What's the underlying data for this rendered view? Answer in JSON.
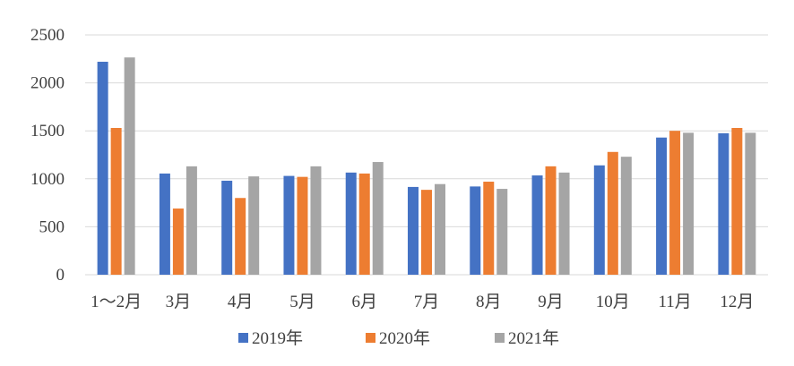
{
  "chart_data": {
    "type": "bar",
    "categories": [
      "1～2月",
      "3月",
      "4月",
      "5月",
      "6月",
      "7月",
      "8月",
      "9月",
      "10月",
      "11月",
      "12月"
    ],
    "series": [
      {
        "name": "2019年",
        "color": "#4472c4",
        "values": [
          2220,
          1055,
          980,
          1030,
          1065,
          915,
          920,
          1035,
          1140,
          1430,
          1475
        ]
      },
      {
        "name": "2020年",
        "color": "#ed7d31",
        "values": [
          1530,
          690,
          800,
          1020,
          1055,
          885,
          970,
          1130,
          1280,
          1500,
          1530
        ]
      },
      {
        "name": "2021年",
        "color": "#a5a5a5",
        "values": [
          2265,
          1130,
          1025,
          1130,
          1175,
          945,
          895,
          1065,
          1230,
          1480,
          1480
        ]
      }
    ],
    "yticks": [
      0,
      500,
      1000,
      1500,
      2000,
      2500
    ],
    "ylim": [
      0,
      2500
    ],
    "grid": true,
    "legend_position": "bottom"
  }
}
